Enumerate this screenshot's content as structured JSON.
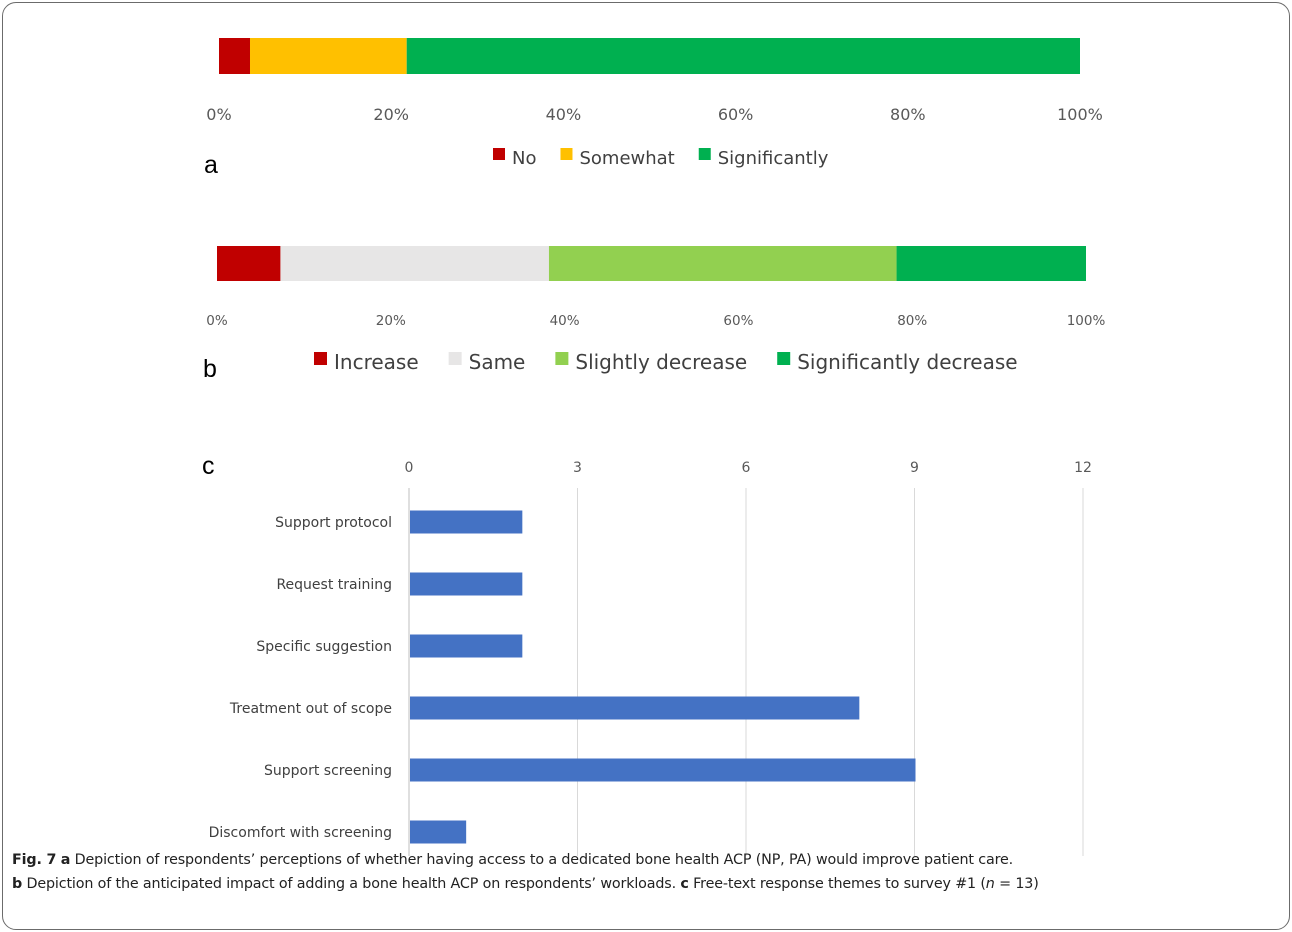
{
  "chart_data": [
    {
      "panel": "a",
      "type": "bar",
      "orientation": "horizontal",
      "stacked": true,
      "normalized": true,
      "xlim": [
        0,
        100
      ],
      "xticks": [
        "0%",
        "20%",
        "40%",
        "60%",
        "80%",
        "100%"
      ],
      "legend_position": "bottom",
      "series": [
        {
          "name": "No",
          "value": 3.6,
          "color": "#c00000"
        },
        {
          "name": "Somewhat",
          "value": 18.2,
          "color": "#ffc000"
        },
        {
          "name": "Significantly",
          "value": 78.2,
          "color": "#00b050"
        }
      ]
    },
    {
      "panel": "b",
      "type": "bar",
      "orientation": "horizontal",
      "stacked": true,
      "normalized": true,
      "xlim": [
        0,
        100
      ],
      "xticks": [
        "0%",
        "20%",
        "40%",
        "60%",
        "80%",
        "100%"
      ],
      "legend_position": "bottom",
      "series": [
        {
          "name": "Increase",
          "value": 7.3,
          "color": "#c00000"
        },
        {
          "name": "Same",
          "value": 30.9,
          "color": "#e7e6e6"
        },
        {
          "name": "Slightly decrease",
          "value": 40.0,
          "color": "#92d050"
        },
        {
          "name": "Significantly decrease",
          "value": 21.8,
          "color": "#00b050"
        }
      ]
    },
    {
      "panel": "c",
      "type": "bar",
      "orientation": "horizontal",
      "xlim": [
        0,
        12
      ],
      "xticks": [
        "0",
        "3",
        "6",
        "9",
        "12"
      ],
      "grid": true,
      "bar_color": "#4472c4",
      "categories": [
        "Support protocol",
        "Request training",
        "Specific suggestion",
        "Treatment out of scope",
        "Support screening",
        "Discomfort with screening"
      ],
      "values": [
        2,
        2,
        2,
        8,
        9,
        1
      ]
    }
  ],
  "caption": {
    "fig_label": "Fig. 7",
    "a_label": "a",
    "a_text": "Depiction of respondents’ perceptions of whether having access to a dedicated bone health ACP (NP, PA) would improve patient care.",
    "b_label": "b",
    "b_text": "Depiction of the anticipated impact of adding a bone health ACP on respondents’ workloads.",
    "c_label": "c",
    "c_text": "Free-text response themes to survey #1 (",
    "c_n": "n",
    "c_text_end": " = 13)"
  }
}
